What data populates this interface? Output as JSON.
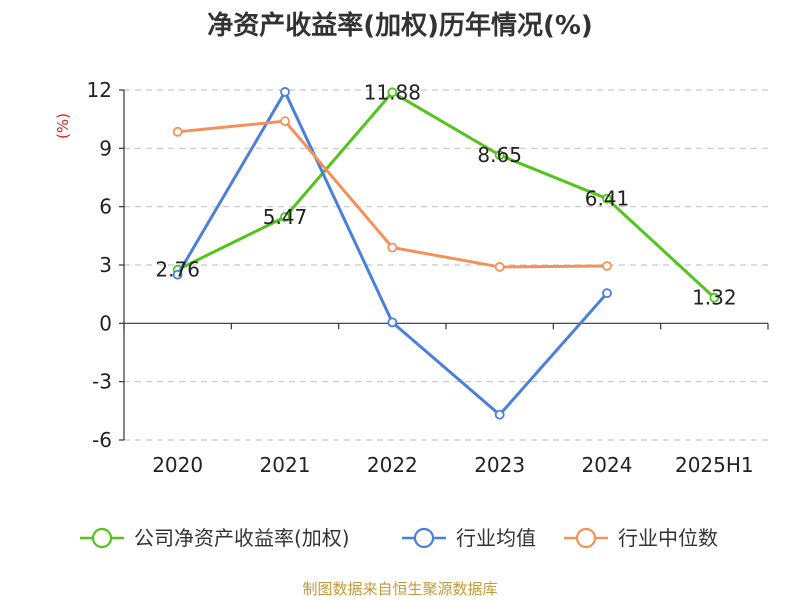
{
  "chart_data": {
    "type": "line",
    "title": "净资产收益率(加权)历年情况(%)",
    "ylabel": "(%)",
    "categories": [
      "2020",
      "2021",
      "2022",
      "2023",
      "2024",
      "2025H1"
    ],
    "ylim": [
      -6,
      12
    ],
    "yticks": [
      -6,
      -3,
      0,
      3,
      6,
      9,
      12
    ],
    "grid": true,
    "legend_position": "bottom",
    "series": [
      {
        "name": "公司净资产收益率(加权)",
        "color": "#52c41a",
        "values": [
          2.76,
          5.47,
          11.88,
          8.65,
          6.41,
          1.32
        ],
        "labels": [
          "2.76",
          "5.47",
          "11.88",
          "8.65",
          "6.41",
          "1.32"
        ]
      },
      {
        "name": "行业均值",
        "color": "#4a7fdc",
        "values": [
          2.5,
          11.9,
          0.05,
          -4.7,
          1.55,
          null
        ]
      },
      {
        "name": "行业中位数",
        "color": "#f4915a",
        "values": [
          9.85,
          10.4,
          3.9,
          2.9,
          2.95,
          null
        ]
      }
    ],
    "source": "制图数据来自恒生聚源数据库"
  }
}
